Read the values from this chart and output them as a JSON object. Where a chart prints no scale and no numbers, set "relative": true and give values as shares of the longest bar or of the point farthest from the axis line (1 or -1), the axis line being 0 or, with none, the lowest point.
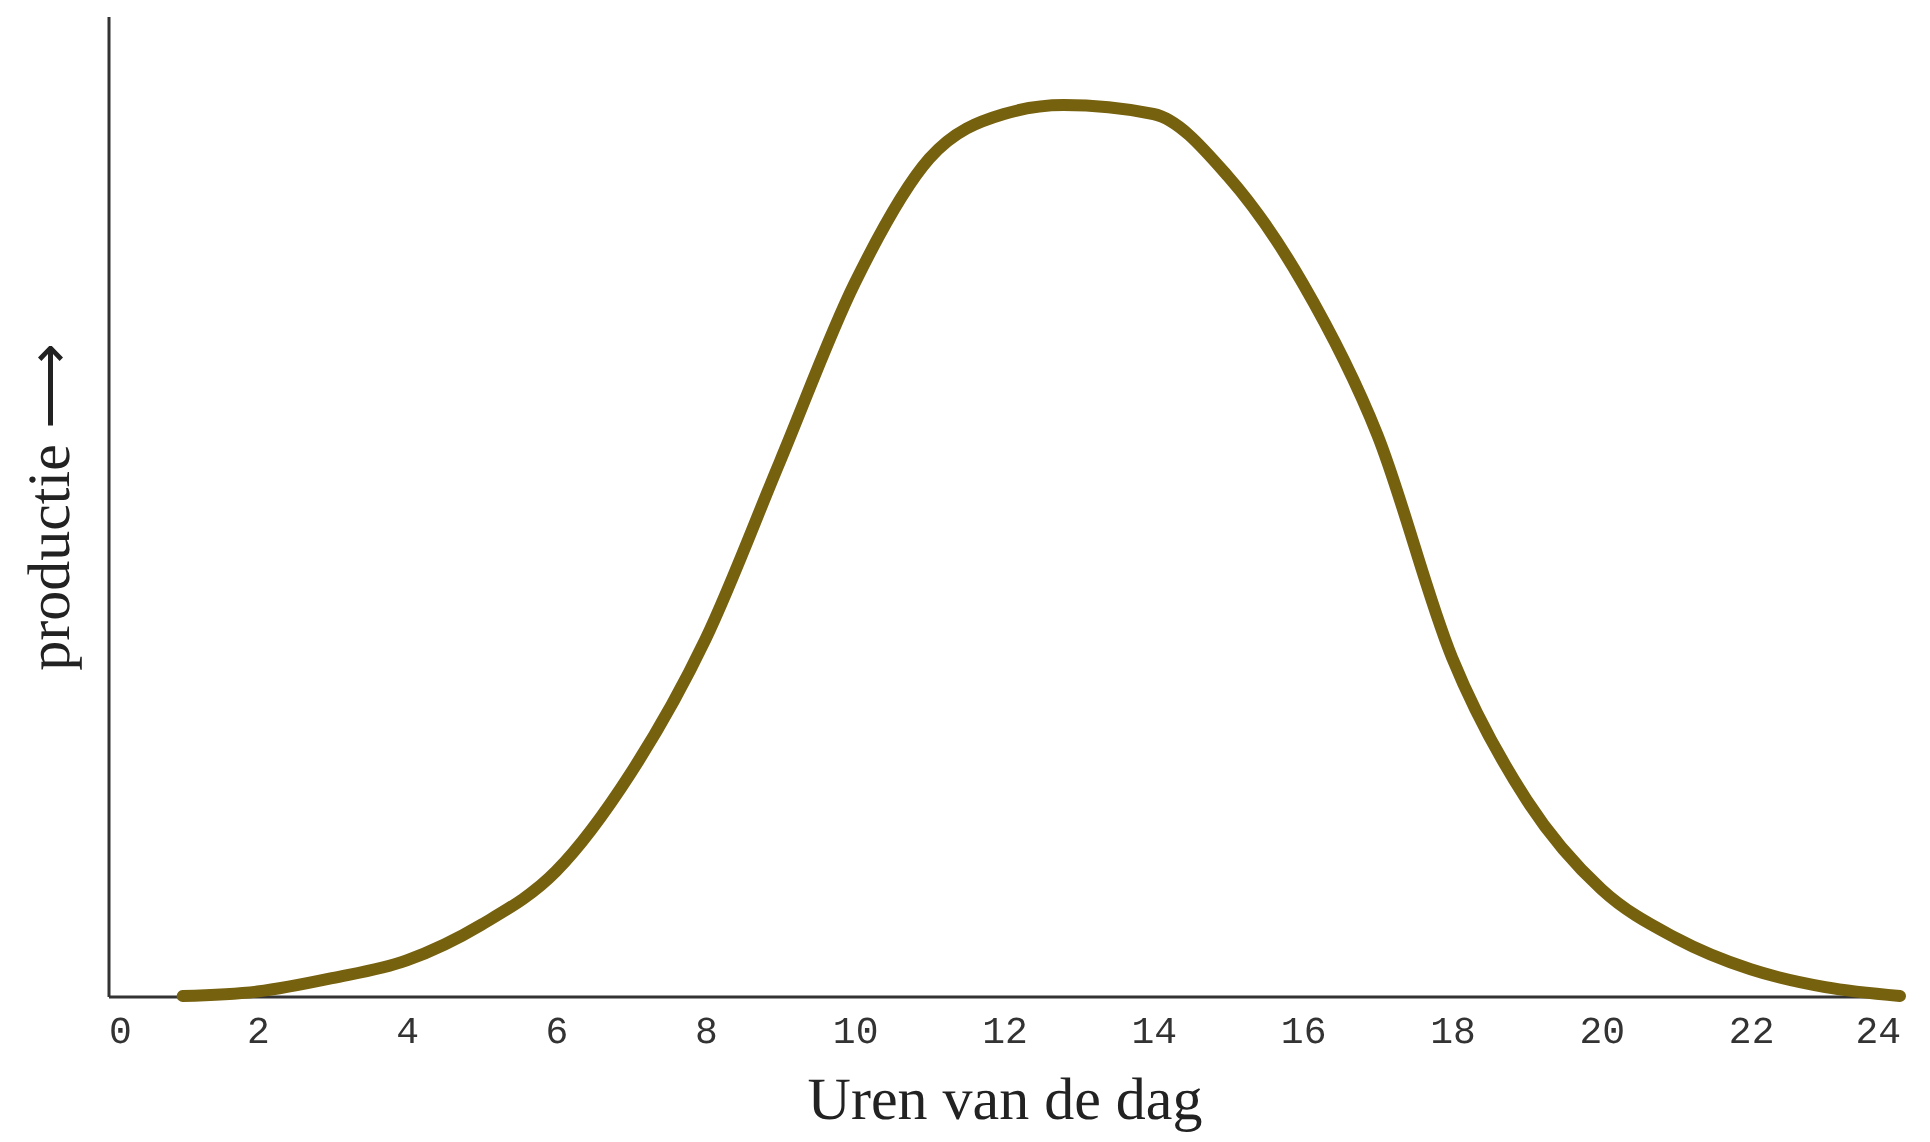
{
  "chart_data": {
    "type": "line",
    "xlabel": "Uren van de dag",
    "ylabel": "productie ⟶",
    "relative": true,
    "xlim": [
      0,
      24
    ],
    "xticks": [
      0,
      2,
      4,
      6,
      8,
      10,
      12,
      14,
      16,
      18,
      20,
      22,
      24
    ],
    "x": [
      1,
      2,
      3,
      4,
      5,
      6,
      7,
      8,
      9,
      10,
      11,
      12,
      12.8,
      14,
      15,
      16,
      17,
      18,
      19,
      20,
      21,
      22,
      23,
      24
    ],
    "series": [
      {
        "color": "#76610f",
        "values": [
          0,
          0.005,
          0.02,
          0.04,
          0.08,
          0.14,
          0.25,
          0.4,
          0.6,
          0.8,
          0.94,
          0.99,
          1,
          0.99,
          0.92,
          0.8,
          0.63,
          0.38,
          0.22,
          0.12,
          0.065,
          0.03,
          0.01,
          0
        ]
      }
    ]
  }
}
